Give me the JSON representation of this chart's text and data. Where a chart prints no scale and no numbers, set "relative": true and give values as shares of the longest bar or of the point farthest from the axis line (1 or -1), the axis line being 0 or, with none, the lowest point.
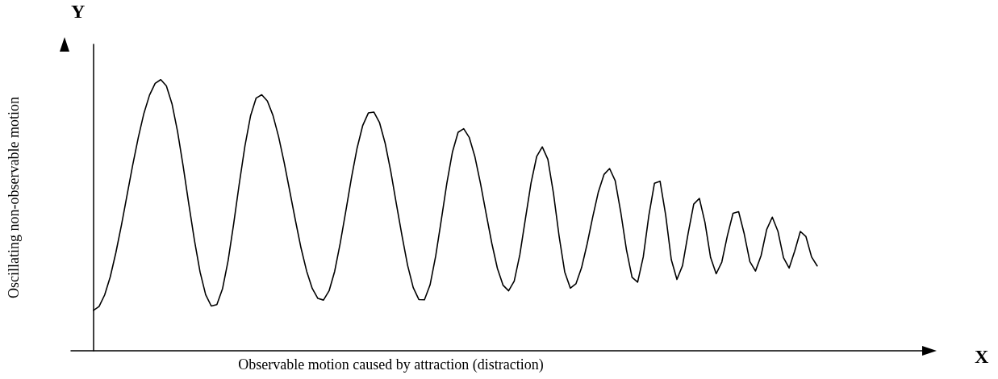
{
  "chart_data": {
    "type": "line",
    "relative": true,
    "xlabel": "Observable motion caused by attraction (distraction)",
    "ylabel": "Oscillating non-observable motion",
    "color": "#000000",
    "marker": "none",
    "line_style": "solid",
    "grid": false,
    "annotations": [
      "X",
      "Y"
    ],
    "categories": [
      null,
      null,
      null,
      null,
      null,
      null,
      null,
      null,
      null,
      null,
      null,
      null,
      null,
      null,
      null,
      null,
      null,
      null,
      null,
      null,
      null,
      null,
      null,
      null,
      null,
      null,
      null,
      null,
      null,
      null,
      null,
      null,
      null,
      null,
      null,
      null,
      null,
      null,
      null,
      null,
      null,
      null,
      null,
      null,
      null,
      null,
      null,
      null,
      null,
      null,
      null,
      null,
      null,
      null,
      null,
      null,
      null,
      null,
      null,
      null,
      null,
      null,
      null,
      null,
      null,
      null,
      null,
      null,
      null,
      null,
      null,
      null,
      null,
      null,
      null,
      null,
      null,
      null,
      null,
      null,
      null,
      null,
      null,
      null,
      null,
      null,
      null,
      null,
      null,
      null,
      null,
      null,
      null,
      null,
      null,
      null,
      null,
      null,
      null,
      null,
      null,
      null,
      null,
      null,
      null,
      null,
      null,
      null,
      null,
      null,
      null,
      null,
      null,
      null,
      null,
      null,
      null,
      null,
      null,
      null,
      null,
      null,
      null,
      null,
      null,
      null,
      null,
      null,
      null,
      null
    ],
    "values": [
      0.149,
      0.163,
      0.206,
      0.273,
      0.362,
      0.464,
      0.575,
      0.685,
      0.787,
      0.876,
      0.943,
      0.986,
      1.0,
      0.977,
      0.911,
      0.808,
      0.68,
      0.541,
      0.408,
      0.291,
      0.207,
      0.165,
      0.17,
      0.228,
      0.332,
      0.469,
      0.617,
      0.755,
      0.866,
      0.932,
      0.944,
      0.921,
      0.868,
      0.79,
      0.694,
      0.588,
      0.481,
      0.379,
      0.294,
      0.23,
      0.193,
      0.187,
      0.221,
      0.293,
      0.398,
      0.517,
      0.639,
      0.748,
      0.831,
      0.877,
      0.88,
      0.841,
      0.765,
      0.661,
      0.541,
      0.424,
      0.315,
      0.233,
      0.189,
      0.188,
      0.243,
      0.349,
      0.482,
      0.619,
      0.734,
      0.806,
      0.819,
      0.786,
      0.715,
      0.616,
      0.505,
      0.397,
      0.304,
      0.242,
      0.221,
      0.257,
      0.354,
      0.487,
      0.619,
      0.716,
      0.752,
      0.706,
      0.58,
      0.423,
      0.291,
      0.231,
      0.247,
      0.306,
      0.394,
      0.494,
      0.586,
      0.65,
      0.672,
      0.627,
      0.51,
      0.373,
      0.271,
      0.253,
      0.346,
      0.499,
      0.618,
      0.625,
      0.5,
      0.336,
      0.263,
      0.314,
      0.433,
      0.541,
      0.562,
      0.473,
      0.344,
      0.284,
      0.327,
      0.425,
      0.507,
      0.513,
      0.431,
      0.329,
      0.294,
      0.351,
      0.447,
      0.493,
      0.441,
      0.343,
      0.305,
      0.368,
      0.44,
      0.421,
      0.346,
      0.313
    ]
  }
}
